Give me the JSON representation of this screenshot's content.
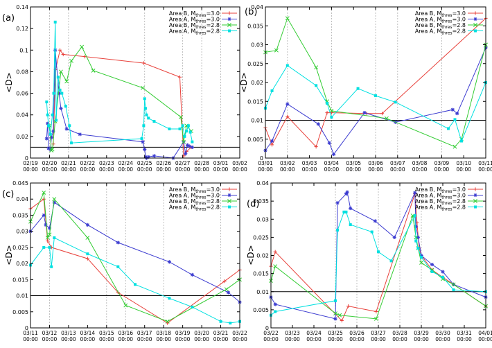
{
  "chart_data": [
    {
      "type": "line",
      "label": "(a)",
      "ylabel": "<D>",
      "ylim": [
        0,
        0.14
      ],
      "yticks": [
        0,
        0.02,
        0.04,
        0.06,
        0.08,
        0.1,
        0.12,
        0.14
      ],
      "ytick_labels": [
        "0",
        "0.02",
        "0.04",
        "0.06",
        "0.08",
        "0.1",
        "0.12",
        "0.14"
      ],
      "xlim": [
        0,
        11
      ],
      "xticks": [
        0,
        1,
        2,
        3,
        4,
        5,
        6,
        7,
        8,
        9,
        10,
        11
      ],
      "xtick_labels": [
        "02/19",
        "02/20",
        "02/21",
        "02/22",
        "02/23",
        "02/24",
        "02/25",
        "02/26",
        "02/27",
        "02/28",
        "03/01",
        "03/02"
      ],
      "xtick_sublabel": "00:00",
      "hline": 0.01,
      "vlines": [
        1,
        2,
        6,
        8,
        9,
        10
      ],
      "legend_position": "top-right",
      "series": [
        {
          "name": "Area B, M_thres=3.0",
          "color": "#e8413b",
          "marker": "plus",
          "x": [
            1.2,
            1.32,
            1.55,
            1.72,
            2.85,
            5.95,
            7.85,
            8.05,
            8.2,
            8.45
          ],
          "y": [
            0.013,
            0.082,
            0.1,
            0.096,
            0.094,
            0.088,
            0.075,
            0.002,
            0.006,
            0.01
          ]
        },
        {
          "name": "Area A, M_thres=3.0",
          "color": "#3b3bd0",
          "marker": "asterisk",
          "x": [
            0.85,
            0.9,
            0.95,
            1.05,
            1.1,
            1.2,
            1.3,
            1.5,
            1.6,
            1.9,
            2.6,
            5.9,
            6.0,
            6.05,
            6.1,
            6.2,
            6.5,
            7.5,
            8.05,
            8.15,
            8.25,
            8.35,
            8.5
          ],
          "y": [
            0.018,
            0.032,
            0.009,
            0.008,
            0.019,
            0.025,
            0.1,
            0.06,
            0.046,
            0.027,
            0.022,
            0.015,
            0.008,
            0.001,
            0.0,
            0.001,
            0.002,
            0.0,
            0.015,
            0.004,
            0.012,
            0.011,
            0.01
          ]
        },
        {
          "name": "Area B, M_thres=2.8",
          "color": "#33cc33",
          "marker": "x",
          "x": [
            1.0,
            1.1,
            1.15,
            1.3,
            1.6,
            1.9,
            2.15,
            2.7,
            3.3,
            5.9,
            7.9,
            8.05,
            8.2,
            8.45
          ],
          "y": [
            0.03,
            0.007,
            0.008,
            0.034,
            0.08,
            0.071,
            0.09,
            0.103,
            0.081,
            0.065,
            0.038,
            0.015,
            0.03,
            0.025
          ]
        },
        {
          "name": "Area A, M_thres=2.8",
          "color": "#00e0e0",
          "marker": "square",
          "x": [
            0.85,
            0.9,
            0.95,
            1.05,
            1.15,
            1.22,
            1.3,
            1.35,
            1.45,
            1.55,
            1.65,
            1.85,
            2.05,
            2.15,
            5.85,
            5.95,
            6.0,
            6.05,
            6.1,
            6.2,
            6.5,
            7.3,
            7.85,
            8.0,
            8.1,
            8.2,
            8.3,
            8.4,
            8.5
          ],
          "y": [
            0.052,
            0.04,
            0.03,
            0.022,
            0.04,
            0.06,
            0.126,
            0.035,
            0.075,
            0.063,
            0.06,
            0.048,
            0.03,
            0.014,
            0.018,
            0.03,
            0.055,
            0.046,
            0.04,
            0.037,
            0.034,
            0.027,
            0.027,
            0.03,
            0.02,
            0.025,
            0.03,
            0.024,
            0.015
          ]
        }
      ]
    },
    {
      "type": "line",
      "label": "(b)",
      "ylabel": "<D>",
      "ylim": [
        0,
        0.04
      ],
      "yticks": [
        0,
        0.005,
        0.01,
        0.015,
        0.02,
        0.025,
        0.03,
        0.035,
        0.04
      ],
      "ytick_labels": [
        "0",
        "0.005",
        "0.01",
        "0.015",
        "0.02",
        "0.025",
        "0.03",
        "0.035",
        "0.04"
      ],
      "xlim": [
        0,
        10
      ],
      "xticks": [
        0,
        1,
        2,
        3,
        4,
        5,
        6,
        7,
        8,
        9,
        10
      ],
      "xtick_labels": [
        "03/01",
        "03/02",
        "03/03",
        "03/04",
        "03/05",
        "03/06",
        "03/07",
        "03/08",
        "03/09",
        "03/10",
        "03/11"
      ],
      "xtick_sublabel": "00:00",
      "hline": 0.01,
      "vlines": [
        1,
        3,
        5,
        6,
        8
      ],
      "legend_position": "top-right",
      "series": [
        {
          "name": "Area B, M_thres=3.0",
          "color": "#e8413b",
          "marker": "plus",
          "x": [
            0,
            0.3,
            1.0,
            2.3,
            2.8,
            3.0,
            4.6,
            5.3,
            10
          ],
          "y": [
            0.008,
            0.0035,
            0.011,
            0.003,
            0.012,
            0.012,
            0.0118,
            0.0118,
            0.037
          ]
        },
        {
          "name": "Area A, M_thres=3.0",
          "color": "#3b3bd0",
          "marker": "asterisk",
          "x": [
            0,
            0.3,
            1.0,
            2.4,
            2.9,
            3.1,
            4.5,
            5.9,
            8.5,
            8.7,
            10
          ],
          "y": [
            0.002,
            0.0045,
            0.0143,
            0.009,
            0.004,
            0.001,
            0.012,
            0.0095,
            0.0128,
            0.0118,
            0.0292
          ]
        },
        {
          "name": "Area B, M_thres=2.8",
          "color": "#33cc33",
          "marker": "x",
          "x": [
            0,
            0.5,
            1.0,
            2.3,
            2.8,
            3.0,
            5.5,
            8.6,
            8.9,
            10
          ],
          "y": [
            0.028,
            0.0285,
            0.037,
            0.024,
            0.015,
            0.0125,
            0.0105,
            0.003,
            0.005,
            0.03
          ]
        },
        {
          "name": "Area A, M_thres=2.8",
          "color": "#00e0e0",
          "marker": "square",
          "x": [
            0,
            0.3,
            1.0,
            2.3,
            2.8,
            3.0,
            4.2,
            5.0,
            5.9,
            8.3,
            8.6,
            8.9,
            10
          ],
          "y": [
            0.0132,
            0.0178,
            0.0245,
            0.0192,
            0.0145,
            0.0108,
            0.0184,
            0.0165,
            0.0148,
            0.0078,
            0.0102,
            0.0045,
            0.02
          ]
        }
      ]
    },
    {
      "type": "line",
      "label": "(c)",
      "ylabel": "<D>",
      "ylim": [
        0,
        0.045
      ],
      "yticks": [
        0,
        0.005,
        0.01,
        0.015,
        0.02,
        0.025,
        0.03,
        0.035,
        0.04,
        0.045
      ],
      "ytick_labels": [
        "0",
        "0.005",
        "0.01",
        "0.015",
        "0.02",
        "0.025",
        "0.03",
        "0.035",
        "0.04",
        "0.045"
      ],
      "xlim": [
        0,
        11
      ],
      "xticks": [
        0,
        1,
        2,
        3,
        4,
        5,
        6,
        7,
        8,
        9,
        10,
        11
      ],
      "xtick_labels": [
        "03/11",
        "03/12",
        "03/13",
        "03/14",
        "03/15",
        "03/16",
        "03/17",
        "03/18",
        "03/19",
        "03/20",
        "03/21",
        "03/22"
      ],
      "xtick_sublabel": "00:00",
      "hline": 0.01,
      "vlines": [
        1,
        4,
        5,
        7,
        10
      ],
      "legend_position": "top-right",
      "series": [
        {
          "name": "Area B, M_thres=3.0",
          "color": "#e8413b",
          "marker": "plus",
          "x": [
            0,
            0.7,
            0.9,
            1.1,
            3.0,
            4.6,
            7.2,
            10.2,
            11
          ],
          "y": [
            0.037,
            0.04,
            0.027,
            0.025,
            0.0215,
            0.011,
            0.0015,
            0.0145,
            0.018
          ]
        },
        {
          "name": "Area A, M_thres=3.0",
          "color": "#3b3bd0",
          "marker": "asterisk",
          "x": [
            0,
            0.7,
            0.8,
            1.0,
            1.25,
            3.0,
            4.6,
            7.3,
            8.5,
            10.4,
            11
          ],
          "y": [
            0.03,
            0.035,
            0.032,
            0.031,
            0.039,
            0.032,
            0.0265,
            0.0205,
            0.0165,
            0.011,
            0.008
          ]
        },
        {
          "name": "Area B, M_thres=2.8",
          "color": "#33cc33",
          "marker": "x",
          "x": [
            0,
            0.7,
            0.9,
            1.0,
            1.25,
            3.0,
            5.0,
            7.2,
            10.3,
            11
          ],
          "y": [
            0.033,
            0.042,
            0.028,
            0.029,
            0.04,
            0.028,
            0.007,
            0.002,
            0.012,
            0.015
          ]
        },
        {
          "name": "Area A, M_thres=2.8",
          "color": "#00e0e0",
          "marker": "square",
          "x": [
            0,
            0.7,
            1.0,
            1.1,
            1.25,
            3.0,
            4.6,
            5.5,
            7.3,
            8.5,
            10.0,
            10.5,
            11
          ],
          "y": [
            0.0195,
            0.025,
            0.025,
            0.019,
            0.028,
            0.023,
            0.019,
            0.0135,
            0.0092,
            0.0065,
            0.002,
            0.0015,
            0.002
          ]
        }
      ]
    },
    {
      "type": "line",
      "label": "(d)",
      "ylabel": "<D>",
      "ylim": [
        0,
        0.04
      ],
      "yticks": [
        0,
        0.005,
        0.01,
        0.015,
        0.02,
        0.025,
        0.03,
        0.035,
        0.04
      ],
      "ytick_labels": [
        "0",
        "0.005",
        "0.01",
        "0.015",
        "0.02",
        "0.025",
        "0.03",
        "0.035",
        "0.04"
      ],
      "xlim": [
        0,
        10
      ],
      "xticks": [
        0,
        1,
        2,
        3,
        4,
        5,
        6,
        7,
        8,
        9,
        10
      ],
      "xtick_labels": [
        "03/22",
        "03/23",
        "03/24",
        "03/25",
        "03/26",
        "03/27",
        "03/28",
        "03/29",
        "03/30",
        "03/31",
        "04/01"
      ],
      "xtick_sublabel": "00:00",
      "hline": 0.01,
      "vlines": [
        3,
        4,
        5,
        6,
        7
      ],
      "legend_position": "top-right",
      "series": [
        {
          "name": "Area B, M_thres=3.0",
          "color": "#e8413b",
          "marker": "plus",
          "x": [
            0,
            0.2,
            3.3,
            3.6,
            4.9,
            6.7,
            6.8,
            6.9,
            7.0,
            7.5,
            8.0,
            8.5,
            10
          ],
          "y": [
            0.017,
            0.021,
            0.002,
            0.006,
            0.0045,
            0.037,
            0.029,
            0.022,
            0.02,
            0.016,
            0.014,
            0.012,
            0.006
          ]
        },
        {
          "name": "Area A, M_thres=3.0",
          "color": "#3b3bd0",
          "marker": "asterisk",
          "x": [
            0,
            0.2,
            3.0,
            3.1,
            3.5,
            3.55,
            3.7,
            4.85,
            5.75,
            6.7,
            6.75,
            6.85,
            7.0,
            7.5,
            8.0,
            8.5,
            10
          ],
          "y": [
            0.0085,
            0.0065,
            0.0025,
            0.0345,
            0.037,
            0.0375,
            0.033,
            0.0295,
            0.025,
            0.0373,
            0.028,
            0.025,
            0.02,
            0.0175,
            0.0155,
            0.012,
            0.0085
          ]
        },
        {
          "name": "Area B, M_thres=2.8",
          "color": "#33cc33",
          "marker": "x",
          "x": [
            0,
            0.2,
            3.0,
            3.2,
            4.9,
            6.6,
            6.75,
            6.85,
            7.0,
            7.5,
            8.0,
            8.5,
            10
          ],
          "y": [
            0.013,
            0.017,
            0.004,
            0.0035,
            0.0025,
            0.031,
            0.025,
            0.022,
            0.018,
            0.016,
            0.0135,
            0.012,
            0.006
          ]
        },
        {
          "name": "Area A, M_thres=2.8",
          "color": "#00e0e0",
          "marker": "square",
          "x": [
            0,
            0.2,
            3.0,
            3.1,
            3.4,
            3.5,
            3.7,
            4.7,
            5.0,
            5.6,
            6.7,
            6.75,
            6.85,
            7.0,
            7.5,
            8.0,
            8.5,
            10
          ],
          "y": [
            0.0035,
            0.0045,
            0.0075,
            0.027,
            0.032,
            0.032,
            0.0285,
            0.0265,
            0.021,
            0.0185,
            0.031,
            0.024,
            0.022,
            0.0195,
            0.0155,
            0.014,
            0.0105,
            0.01
          ]
        }
      ]
    }
  ]
}
